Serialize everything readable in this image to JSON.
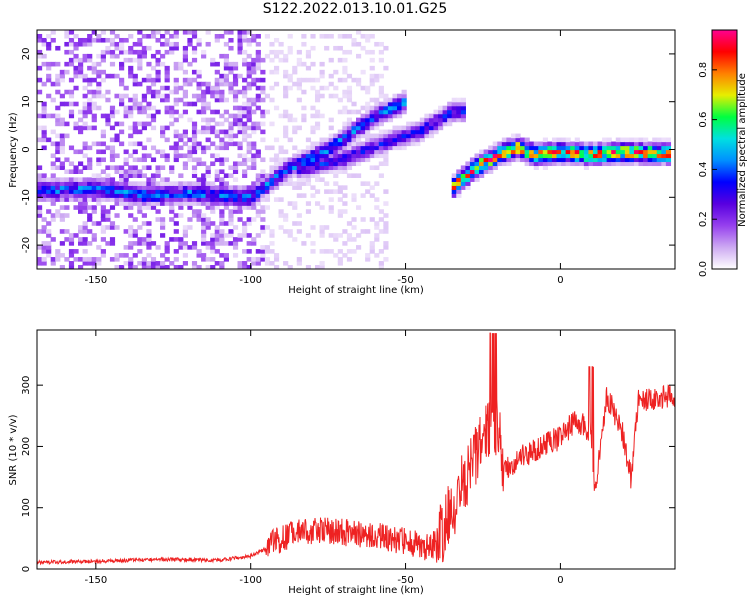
{
  "colors": {
    "snr_line": "#ee2222",
    "axis": "#000000",
    "colormap": [
      "#ffffff",
      "#cda9f2",
      "#9640ee",
      "#5800e0",
      "#0000ff",
      "#0090ff",
      "#00e0e0",
      "#00ff40",
      "#e6ee00",
      "#ff8000",
      "#ff0000",
      "#ff0090"
    ]
  },
  "chart_data": [
    {
      "type": "heatmap",
      "title": "S122.2022.013.10.01.G25",
      "xlabel": "Height of straight line (km)",
      "ylabel": "Frequency (Hz)",
      "xlim": [
        -169,
        37
      ],
      "ylim": [
        -25,
        25
      ],
      "x_ticks": [
        -150,
        -100,
        -50,
        0
      ],
      "y_ticks": [
        -20,
        -10,
        0,
        10,
        20
      ],
      "colorbar": {
        "label": "Normalized spectral amplitude",
        "range": [
          0,
          0.96
        ],
        "ticks": [
          "0.0",
          "0.2",
          "0.4",
          "0.6",
          "0.8"
        ],
        "tick_values": [
          0.0,
          0.2,
          0.4,
          0.6,
          0.8
        ]
      },
      "ridges": [
        {
          "points": [
            [
              -169,
              -8.5
            ],
            [
              -150,
              -8
            ],
            [
              -135,
              -9.5
            ],
            [
              -120,
              -9
            ],
            [
              -100,
              -10
            ],
            [
              -88,
              -4
            ],
            [
              -75,
              0
            ],
            [
              -60,
              7
            ],
            [
              -50,
              10
            ]
          ],
          "peak": 0.5
        },
        {
          "points": [
            [
              -85,
              -4
            ],
            [
              -70,
              -2
            ],
            [
              -55,
              2
            ],
            [
              -45,
              4
            ],
            [
              -35,
              8
            ],
            [
              -30,
              8
            ]
          ],
          "peak": 0.4
        },
        {
          "points": [
            [
              -35,
              -8
            ],
            [
              -28,
              -4
            ],
            [
              -20,
              -1
            ],
            [
              -14,
              0.5
            ],
            [
              -8,
              -1
            ],
            [
              0,
              -0.5
            ],
            [
              10,
              -1
            ],
            [
              20,
              -0.5
            ],
            [
              36,
              -0.8
            ]
          ],
          "peak": 0.96
        }
      ]
    },
    {
      "type": "line",
      "xlabel": "Height of straight line (km)",
      "ylabel": "SNR (10 * v/v)",
      "xlim": [
        -169,
        37
      ],
      "ylim": [
        0,
        390
      ],
      "x_ticks": [
        -150,
        -100,
        -50,
        0
      ],
      "y_ticks": [
        0,
        100,
        200,
        300
      ],
      "series": [
        {
          "x": [
            -169,
            -150,
            -130,
            -110,
            -100,
            -90,
            -85,
            -78,
            -70,
            -60,
            -50,
            -42,
            -38,
            -30,
            -25,
            -22,
            -18,
            -12,
            -5,
            0,
            5,
            10,
            11,
            15,
            20,
            23,
            25,
            30,
            37
          ],
          "y": [
            10,
            12,
            15,
            14,
            20,
            45,
            55,
            60,
            55,
            50,
            40,
            30,
            50,
            150,
            190,
            240,
            160,
            180,
            200,
            210,
            240,
            220,
            120,
            280,
            220,
            140,
            270,
            275,
            280
          ]
        }
      ]
    }
  ]
}
